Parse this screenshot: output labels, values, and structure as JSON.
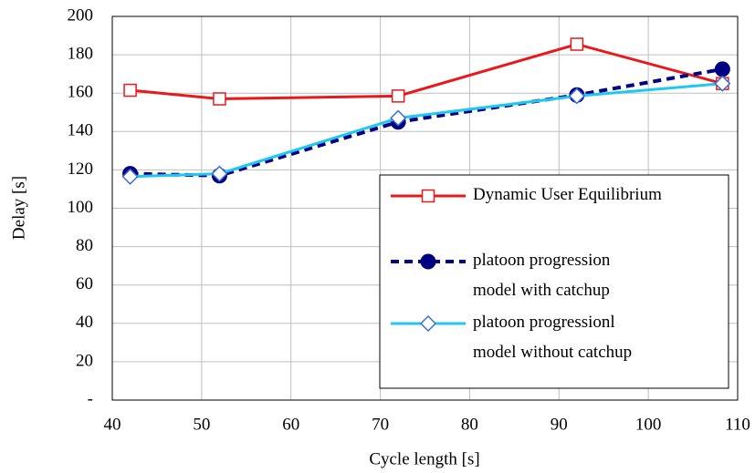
{
  "chart_data": {
    "type": "line",
    "xlabel": "Cycle length [s]",
    "ylabel": "Delay [s]",
    "x": [
      42,
      52,
      72,
      92,
      108.3
    ],
    "series": [
      {
        "name": "Dynamic User Equilibrium",
        "color": "#e8191b",
        "marker": "square",
        "values": [
          161.5,
          157,
          158.5,
          185.5,
          165
        ]
      },
      {
        "name": "platoon progression\nmodel with catchup",
        "color": "#000080",
        "marker": "circle",
        "dashed": true,
        "values": [
          118,
          117,
          145,
          159,
          172.5
        ]
      },
      {
        "name": "platoon progressionl\nmodel without catchup",
        "color": "#1ec8f0",
        "marker": "diamond",
        "values": [
          116.5,
          118,
          147,
          158.5,
          165
        ]
      }
    ],
    "xlim": [
      40,
      110
    ],
    "xticks": [
      40,
      50,
      60,
      70,
      80,
      90,
      100,
      110
    ],
    "ylim": [
      0,
      200
    ],
    "yticks": [
      {
        "value": 0,
        "label": "-"
      },
      20,
      40,
      60,
      80,
      100,
      120,
      140,
      160,
      180,
      200
    ],
    "grid": true,
    "legend": "lower right"
  }
}
